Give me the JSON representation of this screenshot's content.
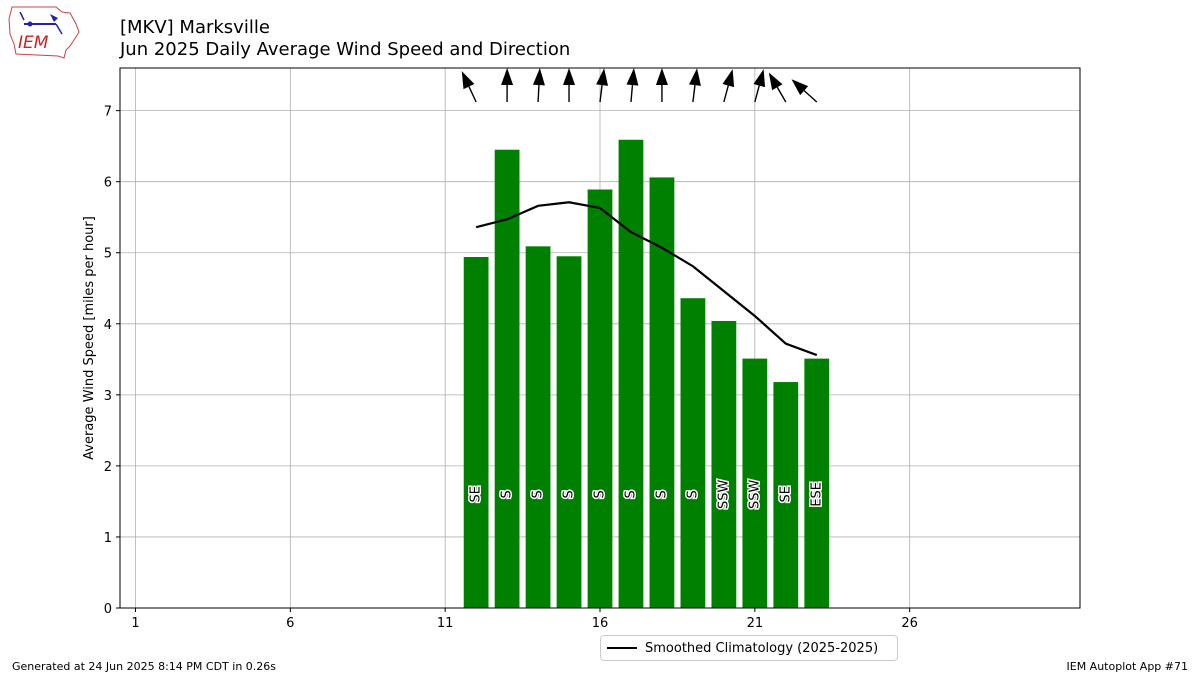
{
  "header": {
    "title_line1": "[MKV] Marksville",
    "title_line2": "Jun 2025 Daily Average Wind Speed and Direction",
    "logo_text": "IEM"
  },
  "footer": {
    "generated": "Generated at 24 Jun 2025 8:14 PM CDT in 0.26s",
    "app": "IEM Autoplot App #71"
  },
  "legend": {
    "label": "Smoothed Climatology (2025-2025)"
  },
  "chart_data": {
    "type": "bar",
    "ylabel": "Average Wind Speed [miles per hour]",
    "xlabel": "",
    "xlim": [
      0.5,
      31.5
    ],
    "ylim": [
      0,
      7.6
    ],
    "xticks": [
      1,
      6,
      11,
      16,
      21,
      26
    ],
    "yticks": [
      0,
      1,
      2,
      3,
      4,
      5,
      6,
      7
    ],
    "grid": true,
    "bar_color": "#008000",
    "days": [
      12,
      13,
      14,
      15,
      16,
      17,
      18,
      19,
      20,
      21,
      22,
      23
    ],
    "values": [
      4.94,
      6.45,
      5.09,
      4.95,
      5.89,
      6.59,
      6.06,
      4.36,
      4.04,
      3.51,
      3.18,
      3.51
    ],
    "directions": [
      "SE",
      "S",
      "S",
      "S",
      "S",
      "S",
      "S",
      "S",
      "SSW",
      "SSW",
      "SE",
      "ESE"
    ],
    "direction_degrees": [
      155,
      180,
      183,
      180,
      187,
      185,
      180,
      187,
      195,
      195,
      150,
      132
    ],
    "climatology": {
      "name": "Smoothed Climatology (2025-2025)",
      "color": "#000000",
      "days": [
        12,
        13,
        14,
        15,
        16,
        17,
        18,
        19,
        20,
        21,
        22,
        23
      ],
      "values": [
        5.36,
        5.47,
        5.66,
        5.71,
        5.63,
        5.29,
        5.07,
        4.81,
        4.46,
        4.11,
        3.72,
        3.56
      ]
    }
  }
}
